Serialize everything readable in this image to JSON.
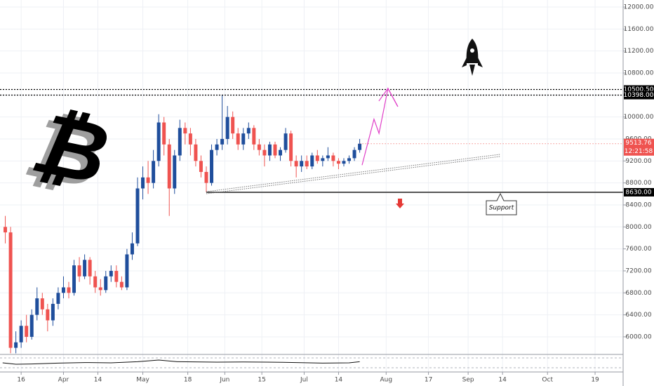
{
  "chart_data": {
    "type": "candlestick",
    "x": [
      70,
      72,
      74,
      76,
      78,
      80,
      82,
      84,
      86,
      88,
      90,
      92,
      94,
      96,
      98,
      100,
      102,
      104,
      106,
      108,
      110,
      112,
      114,
      116,
      118,
      120,
      122,
      124,
      126,
      128,
      130,
      132,
      134,
      136,
      138,
      140,
      142,
      144,
      146,
      148,
      150,
      152,
      154,
      156,
      158,
      160,
      162,
      164,
      166,
      168,
      170,
      172,
      174,
      176,
      178,
      180,
      182,
      184,
      186,
      188,
      190,
      192,
      194,
      196,
      198,
      200,
      202,
      204
    ],
    "open": [
      8000,
      7900,
      5800,
      5900,
      6200,
      6000,
      6400,
      6700,
      6500,
      6300,
      6600,
      6800,
      6900,
      6800,
      7300,
      7100,
      7400,
      7100,
      6900,
      6850,
      7100,
      7200,
      7000,
      6900,
      7500,
      7700,
      8700,
      8900,
      8800,
      9200,
      9900,
      9500,
      8700,
      9300,
      9800,
      9700,
      9500,
      9200,
      9000,
      8800,
      9400,
      9500,
      9600,
      10000,
      9700,
      9500,
      9700,
      9800,
      9500,
      9400,
      9300,
      9500,
      9300,
      9400,
      9700,
      9200,
      9100,
      9200,
      9100,
      9300,
      9200,
      9250,
      9300,
      9200,
      9150,
      9200,
      9250,
      9400
    ],
    "high": [
      8200,
      8000,
      6100,
      6300,
      6400,
      6500,
      6900,
      6800,
      6600,
      6700,
      6900,
      7100,
      7000,
      7400,
      7450,
      7500,
      7450,
      7200,
      7050,
      7200,
      7300,
      7300,
      7100,
      7600,
      7900,
      8900,
      9100,
      9200,
      9400,
      10050,
      10000,
      9600,
      9400,
      9950,
      9900,
      9800,
      9600,
      9300,
      9100,
      9500,
      9600,
      10400,
      10200,
      10100,
      9800,
      9800,
      9900,
      9850,
      9600,
      9500,
      9550,
      9550,
      9450,
      9800,
      9750,
      9300,
      9300,
      9300,
      9350,
      9400,
      9300,
      9450,
      9350,
      9250,
      9250,
      9300,
      9450,
      9600
    ],
    "low": [
      7700,
      5700,
      5700,
      5800,
      5900,
      5950,
      6300,
      6400,
      6100,
      6200,
      6500,
      6700,
      6700,
      6750,
      7000,
      7050,
      6950,
      6800,
      6750,
      6800,
      7000,
      6900,
      6850,
      6850,
      7400,
      7650,
      8500,
      8600,
      8700,
      9100,
      9300,
      8200,
      8600,
      9200,
      9500,
      9300,
      9100,
      8900,
      8630,
      8750,
      9300,
      9400,
      9500,
      9600,
      9400,
      9400,
      9600,
      9400,
      9300,
      9100,
      9200,
      9250,
      9200,
      9350,
      9100,
      8900,
      9000,
      9050,
      9050,
      9150,
      9100,
      9200,
      9100,
      9050,
      9100,
      9150,
      9200,
      9350
    ],
    "close": [
      7900,
      5800,
      5900,
      6200,
      6000,
      6400,
      6700,
      6500,
      6300,
      6600,
      6800,
      6900,
      6800,
      7300,
      7100,
      7400,
      7100,
      6900,
      6850,
      7100,
      7200,
      7000,
      6900,
      7500,
      7700,
      8700,
      8900,
      8800,
      9200,
      9900,
      9500,
      8700,
      9300,
      9800,
      9700,
      9500,
      9200,
      9000,
      8800,
      9400,
      9500,
      9600,
      10000,
      9700,
      9500,
      9700,
      9800,
      9500,
      9400,
      9300,
      9500,
      9300,
      9400,
      9700,
      9200,
      9100,
      9200,
      9100,
      9300,
      9200,
      9250,
      9300,
      9200,
      9150,
      9200,
      9250,
      9400,
      9513.76
    ],
    "up_color": "#1f4e9c",
    "down_color": "#ef5350",
    "xlim": [
      68,
      303.6
    ],
    "xticks": [
      {
        "value": 76,
        "label": "16"
      },
      {
        "value": 92,
        "label": "Apr"
      },
      {
        "value": 105,
        "label": "14"
      },
      {
        "value": 122,
        "label": "May"
      },
      {
        "value": 139,
        "label": "18"
      },
      {
        "value": 153,
        "label": "Jun"
      },
      {
        "value": 167,
        "label": "15"
      },
      {
        "value": 183,
        "label": "Jul"
      },
      {
        "value": 196,
        "label": "14"
      },
      {
        "value": 214,
        "label": "Aug"
      },
      {
        "value": 230,
        "label": "17"
      },
      {
        "value": 245,
        "label": "Sep"
      },
      {
        "value": 258,
        "label": "14"
      },
      {
        "value": 275,
        "label": "Oct"
      },
      {
        "value": 293,
        "label": "19"
      }
    ],
    "ylim": [
      5680,
      12128
    ],
    "yticks": [
      {
        "value": 6000,
        "label": "6000.00"
      },
      {
        "value": 6400,
        "label": "6400.00"
      },
      {
        "value": 6800,
        "label": "6800.00"
      },
      {
        "value": 7200,
        "label": "7200.00"
      },
      {
        "value": 7600,
        "label": "7600.00"
      },
      {
        "value": 8000,
        "label": "8000.00"
      },
      {
        "value": 8400,
        "label": "8400.00"
      },
      {
        "value": 8800,
        "label": "8800.00"
      },
      {
        "value": 9200,
        "label": "9200.00"
      },
      {
        "value": 9600,
        "label": "9600.00"
      },
      {
        "value": 10000,
        "label": "10000.00"
      },
      {
        "value": 10400,
        "label": "10400.00"
      },
      {
        "value": 10800,
        "label": "10800.00"
      },
      {
        "value": 11200,
        "label": "11200.00"
      },
      {
        "value": 11600,
        "label": "11600.00"
      },
      {
        "value": 12000,
        "label": "12000.00"
      }
    ],
    "grid": true,
    "levels": [
      {
        "value": 10500.5,
        "label": "10500.50"
      },
      {
        "value": 10398,
        "label": "10398.00"
      }
    ],
    "support": {
      "value": 8630,
      "label": "8630.00",
      "x_start": 146,
      "text": "Support"
    },
    "last_price": {
      "value": 9513.76,
      "label": "9513.76"
    },
    "countdown": "12:21:58",
    "trendline": {
      "x": [
        146,
        257
      ],
      "values": [
        8642,
        9319
      ]
    },
    "projection": {
      "color": "#e040c8",
      "x": [
        204.9,
        209.4,
        211.3,
        214.7,
        218.4
      ],
      "values": [
        9124,
        9960,
        9702,
        10520,
        10190
      ]
    },
    "rsi": {
      "ylim": [
        0,
        100
      ],
      "x": [
        69,
        74,
        80,
        90,
        100,
        110,
        120,
        128,
        135,
        150,
        160,
        175,
        190,
        200,
        204
      ],
      "values": [
        50,
        40,
        42,
        48,
        52,
        50,
        58,
        70,
        58,
        55,
        56,
        54,
        48,
        50,
        58
      ]
    },
    "logo": "₿"
  }
}
